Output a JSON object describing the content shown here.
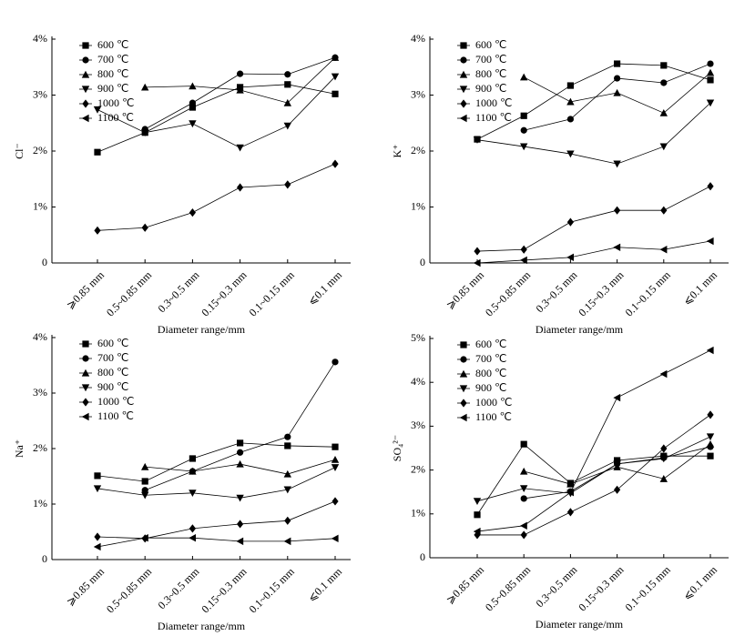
{
  "chart_data": [
    {
      "type": "line",
      "ylabel": "Cl⁻",
      "xlabel": "Diameter range/mm",
      "categories": [
        "⩾0.85 mm",
        "0.5~0.85 mm",
        "0.3~0.5 mm",
        "0.15~0.3 mm",
        "0.1~0.15 mm",
        "⩽0.1 mm"
      ],
      "ylim": [
        0,
        4
      ],
      "yticks": [
        0,
        {
          "value": 1,
          "label": "1%"
        },
        {
          "value": 2,
          "label": "2%"
        },
        {
          "value": 3,
          "label": "3%"
        },
        {
          "value": 4,
          "label": "4%"
        }
      ],
      "series": [
        {
          "name": "600 ℃",
          "color": "#000000",
          "marker": "square",
          "values": [
            1.98,
            2.33,
            2.78,
            3.14,
            3.19,
            3.02
          ]
        },
        {
          "name": "700 ℃",
          "color": "#000000",
          "marker": "circle",
          "values": [
            null,
            2.39,
            2.86,
            3.38,
            3.37,
            3.67
          ]
        },
        {
          "name": "800 ℃",
          "color": "#000000",
          "marker": "triangle-up",
          "values": [
            null,
            3.14,
            3.16,
            3.09,
            2.86,
            3.67
          ]
        },
        {
          "name": "900 ℃",
          "color": "#000000",
          "marker": "triangle-down",
          "values": [
            2.74,
            2.33,
            2.49,
            2.06,
            2.45,
            3.33
          ]
        },
        {
          "name": "1000 ℃",
          "color": "#000000",
          "marker": "diamond",
          "values": [
            0.58,
            0.63,
            0.9,
            1.35,
            1.4,
            1.77
          ]
        },
        {
          "name": "1100 ℃",
          "color": "#000000",
          "marker": "triangle-left",
          "values": [
            null,
            null,
            null,
            null,
            null,
            null
          ]
        }
      ]
    },
    {
      "type": "line",
      "ylabel": "K⁺",
      "xlabel": "Diameter range/mm",
      "categories": [
        "⩾0.85 mm",
        "0.5~0.85 mm",
        "0.3~0.5 mm",
        "0.15~0.3 mm",
        "0.1~0.15 mm",
        "⩽0.1 mm"
      ],
      "ylim": [
        0,
        4
      ],
      "yticks": [
        0,
        {
          "value": 1,
          "label": "1%"
        },
        {
          "value": 2,
          "label": "2%"
        },
        {
          "value": 3,
          "label": "3%"
        },
        {
          "value": 4,
          "label": "4%"
        }
      ],
      "series": [
        {
          "name": "600 ℃",
          "color": "#000000",
          "marker": "square",
          "values": [
            2.21,
            2.63,
            3.17,
            3.56,
            3.53,
            3.27
          ]
        },
        {
          "name": "700 ℃",
          "color": "#000000",
          "marker": "circle",
          "values": [
            null,
            2.37,
            2.57,
            3.3,
            3.22,
            3.56
          ]
        },
        {
          "name": "800 ℃",
          "color": "#000000",
          "marker": "triangle-up",
          "values": [
            null,
            3.32,
            2.88,
            3.04,
            2.68,
            3.4
          ]
        },
        {
          "name": "900 ℃",
          "color": "#000000",
          "marker": "triangle-down",
          "values": [
            2.2,
            2.08,
            1.95,
            1.77,
            2.08,
            2.86
          ]
        },
        {
          "name": "1000 ℃",
          "color": "#000000",
          "marker": "diamond",
          "values": [
            0.21,
            0.24,
            0.73,
            0.94,
            0.94,
            1.37
          ]
        },
        {
          "name": "1100 ℃",
          "color": "#000000",
          "marker": "triangle-left",
          "values": [
            0,
            0.05,
            0.1,
            0.28,
            0.24,
            0.39
          ]
        }
      ]
    },
    {
      "type": "line",
      "ylabel": "Na⁺",
      "xlabel": "Diameter range/mm",
      "categories": [
        "⩾0.85 mm",
        "0.5~0.85 mm",
        "0.3~0.5 mm",
        "0.15~0.3 mm",
        "0.1~0.15 mm",
        "⩽0.1 mm"
      ],
      "ylim": [
        0,
        4
      ],
      "yticks": [
        0,
        {
          "value": 1,
          "label": "1%"
        },
        {
          "value": 2,
          "label": "2%"
        },
        {
          "value": 3,
          "label": "3%"
        },
        {
          "value": 4,
          "label": "4%"
        }
      ],
      "series": [
        {
          "name": "600 ℃",
          "color": "#000000",
          "marker": "square",
          "values": [
            1.51,
            1.41,
            1.82,
            2.1,
            2.05,
            2.03
          ]
        },
        {
          "name": "700 ℃",
          "color": "#000000",
          "marker": "circle",
          "values": [
            null,
            1.25,
            1.59,
            1.93,
            2.21,
            3.56
          ]
        },
        {
          "name": "800 ℃",
          "color": "#000000",
          "marker": "triangle-up",
          "values": [
            null,
            1.67,
            1.59,
            1.72,
            1.54,
            1.8
          ]
        },
        {
          "name": "900 ℃",
          "color": "#000000",
          "marker": "triangle-down",
          "values": [
            1.28,
            1.16,
            1.2,
            1.11,
            1.26,
            1.66
          ]
        },
        {
          "name": "1000 ℃",
          "color": "#000000",
          "marker": "diamond",
          "values": [
            0.41,
            0.38,
            0.56,
            0.64,
            0.7,
            1.05
          ]
        },
        {
          "name": "1100 ℃",
          "color": "#000000",
          "marker": "triangle-left",
          "values": [
            0.23,
            0.39,
            0.39,
            0.33,
            0.33,
            0.38
          ]
        }
      ]
    },
    {
      "type": "line",
      "ylabel": "SO₄²⁻",
      "xlabel": "Diameter range/mm",
      "categories": [
        "⩾0.85 mm",
        "0.5~0.85 mm",
        "0.3~0.5 mm",
        "0.15~0.3 mm",
        "0.1~0.15 mm",
        "⩽0.1 mm"
      ],
      "ylim": [
        0,
        5
      ],
      "yticks": [
        0,
        {
          "value": 1,
          "label": "1%"
        },
        {
          "value": 2,
          "label": "2%"
        },
        {
          "value": 3,
          "label": "3%"
        },
        {
          "value": 4,
          "label": "4%"
        },
        {
          "value": 5,
          "label": "5%"
        }
      ],
      "series": [
        {
          "name": "600 ℃",
          "color": "#000000",
          "marker": "square",
          "values": [
            0.98,
            2.59,
            1.7,
            2.22,
            2.32,
            2.32
          ]
        },
        {
          "name": "700 ℃",
          "color": "#000000",
          "marker": "circle",
          "values": [
            null,
            1.35,
            1.51,
            2.14,
            2.28,
            2.53
          ]
        },
        {
          "name": "800 ℃",
          "color": "#000000",
          "marker": "triangle-up",
          "values": [
            null,
            1.97,
            1.68,
            2.07,
            1.8,
            2.59
          ]
        },
        {
          "name": "900 ℃",
          "color": "#000000",
          "marker": "triangle-down",
          "values": [
            1.29,
            1.58,
            1.47,
            2.14,
            2.26,
            2.76
          ]
        },
        {
          "name": "1000 ℃",
          "color": "#000000",
          "marker": "diamond",
          "values": [
            0.52,
            0.52,
            1.04,
            1.55,
            2.49,
            3.26
          ]
        },
        {
          "name": "1100 ℃",
          "color": "#000000",
          "marker": "triangle-left",
          "values": [
            0.6,
            0.73,
            1.49,
            3.65,
            4.19,
            4.73
          ]
        }
      ]
    }
  ]
}
